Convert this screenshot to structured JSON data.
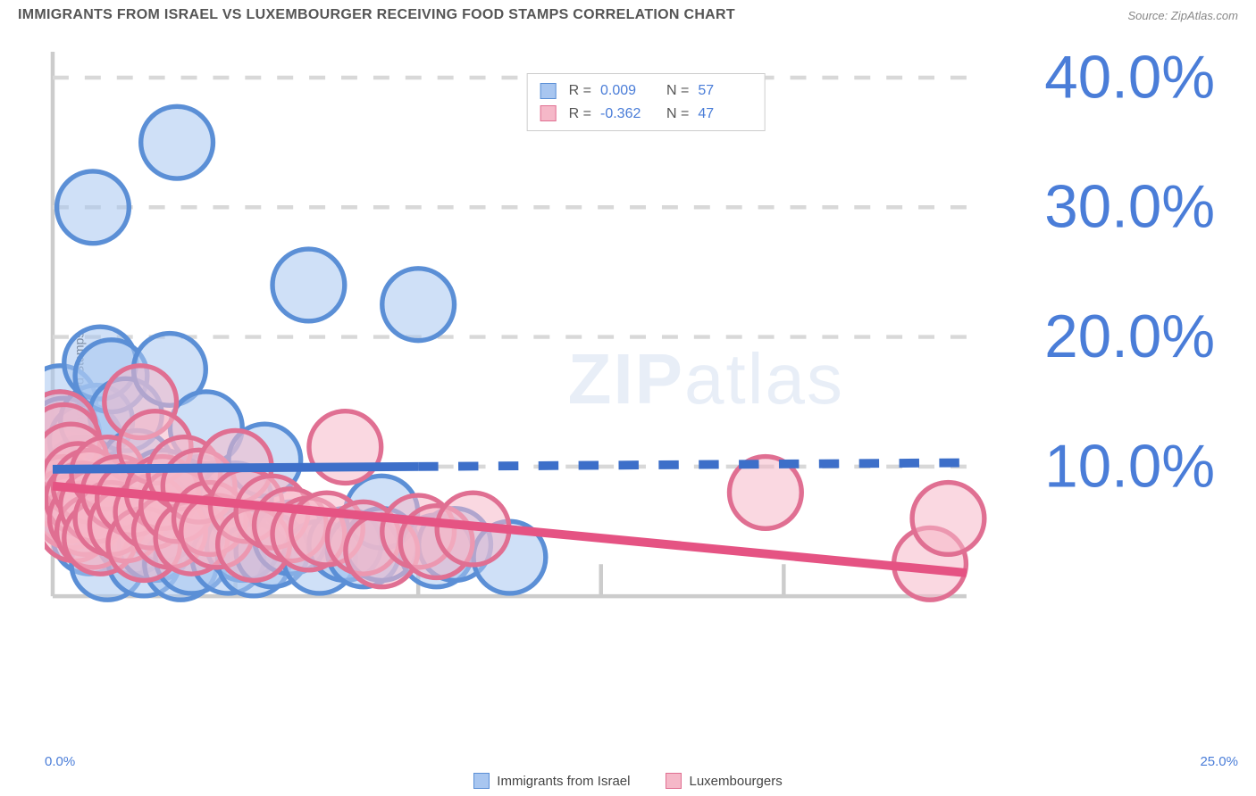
{
  "title": "IMMIGRANTS FROM ISRAEL VS LUXEMBOURGER RECEIVING FOOD STAMPS CORRELATION CHART",
  "source_prefix": "Source: ",
  "source_link": "ZipAtlas.com",
  "ylabel": "Receiving Food Stamps",
  "watermark_bold": "ZIP",
  "watermark_rest": "atlas",
  "chart": {
    "type": "scatter",
    "xlim": [
      0,
      25
    ],
    "ylim": [
      0,
      42
    ],
    "background_color": "#ffffff",
    "grid_color": "#d8d8d8",
    "grid_dash": "4,4",
    "axis_color": "#cccccc",
    "y_gridlines": [
      10,
      20,
      30,
      40
    ],
    "y_ticklabels": [
      "10.0%",
      "20.0%",
      "30.0%",
      "40.0%"
    ],
    "x_ticks": [
      0,
      5,
      10,
      15,
      20,
      25
    ],
    "x_corner_left": "0.0%",
    "x_corner_right": "25.0%",
    "tick_label_color": "#4a7dd8",
    "tick_fontsize": 15,
    "marker_radius": 9,
    "marker_opacity": 0.55,
    "marker_stroke_width": 1.2,
    "trend_line_width": 2.2,
    "trend_dash": "5,5"
  },
  "legend_stats": {
    "r_label": "R",
    "n_label": "N",
    "eq": "=",
    "rows": [
      {
        "swatch_fill": "#a8c6f0",
        "swatch_stroke": "#5b8fd6",
        "r": "0.009",
        "n": "57"
      },
      {
        "swatch_fill": "#f5b8c8",
        "swatch_stroke": "#e06f92",
        "r": "-0.362",
        "n": "47"
      }
    ]
  },
  "bottom_legend": [
    {
      "label": "Immigrants from Israel",
      "fill": "#a8c6f0",
      "stroke": "#5b8fd6"
    },
    {
      "label": "Luxembourgers",
      "fill": "#f5b8c8",
      "stroke": "#e06f92"
    }
  ],
  "series": [
    {
      "name": "israel",
      "fill": "#a8c6f0",
      "stroke": "#5b8fd6",
      "trend_color": "#3d6fc9",
      "trend": {
        "x1": 0,
        "y1": 9.8,
        "x2_solid": 10,
        "y2_solid": 10.0,
        "x2": 25,
        "y2": 10.3
      },
      "points": [
        [
          0.2,
          15.0
        ],
        [
          0.2,
          13.0
        ],
        [
          0.3,
          9.5
        ],
        [
          0.3,
          10.2
        ],
        [
          0.3,
          12.5
        ],
        [
          0.5,
          7.5
        ],
        [
          0.5,
          10.5
        ],
        [
          0.6,
          7.0
        ],
        [
          0.7,
          6.5
        ],
        [
          0.8,
          8.5
        ],
        [
          0.8,
          9.5
        ],
        [
          0.9,
          12.0
        ],
        [
          1.0,
          6.0
        ],
        [
          1.0,
          4.5
        ],
        [
          1.1,
          30.0
        ],
        [
          1.2,
          13.5
        ],
        [
          1.3,
          7.5
        ],
        [
          1.3,
          18.0
        ],
        [
          1.5,
          2.5
        ],
        [
          1.5,
          7.0
        ],
        [
          1.6,
          17.0
        ],
        [
          1.8,
          6.5
        ],
        [
          2.0,
          7.5
        ],
        [
          2.0,
          14.0
        ],
        [
          2.2,
          4.5
        ],
        [
          2.3,
          10.0
        ],
        [
          2.5,
          6.5
        ],
        [
          2.5,
          2.8
        ],
        [
          2.7,
          7.0
        ],
        [
          2.8,
          4.0
        ],
        [
          3.0,
          8.5
        ],
        [
          3.0,
          5.5
        ],
        [
          3.2,
          17.5
        ],
        [
          3.4,
          35.0
        ],
        [
          3.5,
          7.5
        ],
        [
          3.5,
          2.5
        ],
        [
          3.8,
          3.0
        ],
        [
          4.0,
          8.0
        ],
        [
          4.2,
          13.0
        ],
        [
          4.5,
          5.0
        ],
        [
          4.8,
          3.0
        ],
        [
          5.0,
          7.5
        ],
        [
          5.2,
          4.0
        ],
        [
          5.5,
          2.8
        ],
        [
          5.8,
          10.5
        ],
        [
          6.0,
          3.5
        ],
        [
          6.5,
          4.5
        ],
        [
          7.0,
          24.0
        ],
        [
          7.3,
          3.0
        ],
        [
          8.0,
          4.0
        ],
        [
          8.5,
          3.5
        ],
        [
          9.0,
          6.5
        ],
        [
          9.0,
          4.0
        ],
        [
          10.0,
          22.5
        ],
        [
          10.5,
          3.5
        ],
        [
          11.0,
          4.0
        ],
        [
          12.5,
          3.0
        ]
      ]
    },
    {
      "name": "luxembourg",
      "fill": "#f5b8c8",
      "stroke": "#e06f92",
      "trend_color": "#e55383",
      "trend": {
        "x1": 0,
        "y1": 8.5,
        "x2_solid": 25,
        "y2_solid": 1.8,
        "x2": 25,
        "y2": 1.8
      },
      "points": [
        [
          0.2,
          13.0
        ],
        [
          0.3,
          12.0
        ],
        [
          0.3,
          8.0
        ],
        [
          0.4,
          7.0
        ],
        [
          0.5,
          10.5
        ],
        [
          0.5,
          6.5
        ],
        [
          0.6,
          5.5
        ],
        [
          0.7,
          9.0
        ],
        [
          0.8,
          7.5
        ],
        [
          0.9,
          6.0
        ],
        [
          1.0,
          8.5
        ],
        [
          1.1,
          5.0
        ],
        [
          1.2,
          7.0
        ],
        [
          1.3,
          4.5
        ],
        [
          1.5,
          9.5
        ],
        [
          1.6,
          6.0
        ],
        [
          1.8,
          8.0
        ],
        [
          2.0,
          5.5
        ],
        [
          2.2,
          7.5
        ],
        [
          2.4,
          15.0
        ],
        [
          2.5,
          4.0
        ],
        [
          2.7,
          6.5
        ],
        [
          2.8,
          11.5
        ],
        [
          3.0,
          8.0
        ],
        [
          3.2,
          5.0
        ],
        [
          3.4,
          7.0
        ],
        [
          3.6,
          9.5
        ],
        [
          3.8,
          4.5
        ],
        [
          4.0,
          8.5
        ],
        [
          4.3,
          6.0
        ],
        [
          4.5,
          5.0
        ],
        [
          5.0,
          10.0
        ],
        [
          5.3,
          7.0
        ],
        [
          5.5,
          4.0
        ],
        [
          6.0,
          6.5
        ],
        [
          6.5,
          5.5
        ],
        [
          7.0,
          4.8
        ],
        [
          7.5,
          5.2
        ],
        [
          8.0,
          11.5
        ],
        [
          8.5,
          4.5
        ],
        [
          9.0,
          3.5
        ],
        [
          10.0,
          5.0
        ],
        [
          10.5,
          4.2
        ],
        [
          11.5,
          5.2
        ],
        [
          19.5,
          8.0
        ],
        [
          24.0,
          2.5
        ],
        [
          24.5,
          6.0
        ]
      ]
    }
  ]
}
